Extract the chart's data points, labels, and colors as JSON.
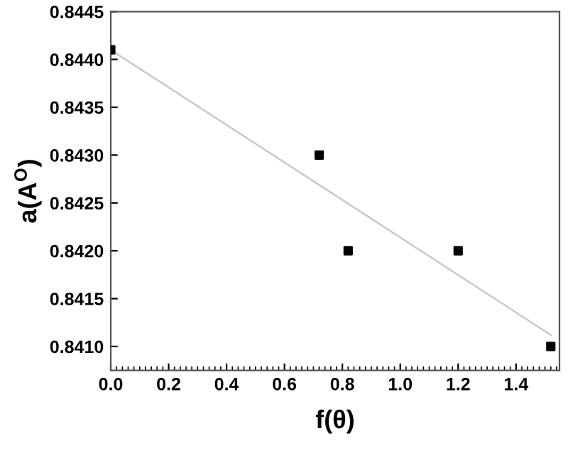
{
  "chart_data": {
    "type": "scatter",
    "xlabel": "f(θ)",
    "ylabel": "a(A$^{O}$)",
    "series": [
      {
        "color": "#000000",
        "marker": "square",
        "x": [
          0.0,
          0.72,
          0.82,
          1.2,
          1.52
        ],
        "values": [
          0.8441,
          0.843,
          0.842,
          0.842,
          0.841
        ]
      },
      {
        "type": "line",
        "color": "#c8c8c8",
        "marker": "none",
        "x": [
          0.0,
          1.52
        ],
        "values": [
          0.8441,
          0.84112
        ]
      }
    ],
    "xlim": [
      0,
      1.55
    ],
    "xticks": [
      {
        "value": 0,
        "label": "0.0"
      },
      0.2,
      0.4,
      0.6,
      0.8,
      {
        "value": 1,
        "label": "1.0"
      },
      1.2,
      1.4
    ],
    "ylim": [
      0.84075,
      0.8445
    ],
    "yticks": [
      {
        "value": 0.841,
        "label": "0.8410"
      },
      0.8415,
      {
        "value": 0.842,
        "label": "0.8420"
      },
      0.8425,
      {
        "value": 0.843,
        "label": "0.8430"
      },
      0.8435,
      {
        "value": 0.844,
        "label": "0.8440"
      },
      0.8445
    ],
    "grid": false,
    "legend": false
  }
}
